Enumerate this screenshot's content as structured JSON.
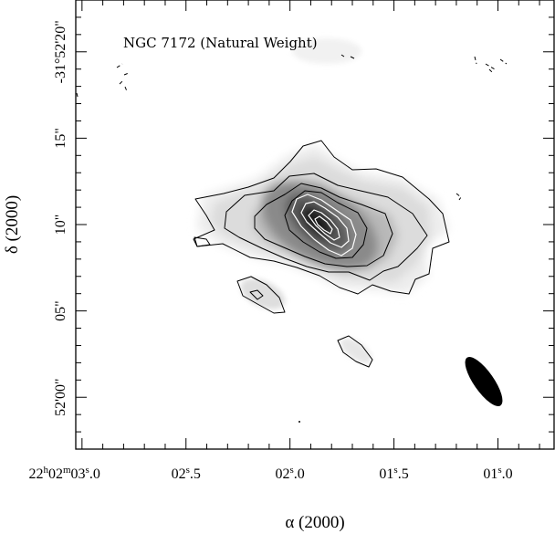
{
  "chart_data": {
    "type": "heatmap",
    "title": "NGC 7172 (Natural Weight)",
    "xlabel": "α (2000)",
    "ylabel": "δ (2000)",
    "x_ticks": [
      {
        "value": 3.0,
        "label": "22h02m03s.0",
        "parts": [
          "22",
          "h",
          "02",
          "m",
          "03",
          "s",
          ".0"
        ]
      },
      {
        "value": 2.5,
        "label": "02s.5",
        "parts": [
          "02",
          "s",
          ".5"
        ]
      },
      {
        "value": 2.0,
        "label": "02s.0",
        "parts": [
          "02",
          "s",
          ".0"
        ]
      },
      {
        "value": 1.5,
        "label": "01s.5",
        "parts": [
          "01",
          "s",
          ".5"
        ]
      },
      {
        "value": 1.0,
        "label": "01s.0",
        "parts": [
          "01",
          "s",
          ".0"
        ]
      }
    ],
    "y_ticks": [
      {
        "value": 0,
        "label": "52'00\""
      },
      {
        "value": 5,
        "label": "05\""
      },
      {
        "value": 10,
        "label": "10\""
      },
      {
        "value": 15,
        "label": "15\""
      },
      {
        "value": 20,
        "label": "-31°52'20\""
      }
    ],
    "xlim": [
      3.03,
      0.73
    ],
    "ylim": [
      23.0,
      -3.0
    ],
    "x_unit": "seconds of RA past 22h02m",
    "y_unit": "arcsec south of -31°52'00\"",
    "emission_peak": {
      "x": 1.9,
      "y": 10.5
    },
    "emission_position_angle_deg": 60,
    "beam": {
      "x": 1.1,
      "y": 20.0,
      "major_arcsec": 4.6,
      "minor_arcsec": 1.6,
      "pa_deg": 35
    },
    "grid": false,
    "grayscale": true,
    "colors": {
      "contour_dark": "#000000",
      "contour_light": "#ffffff",
      "beam": "#000000"
    }
  }
}
